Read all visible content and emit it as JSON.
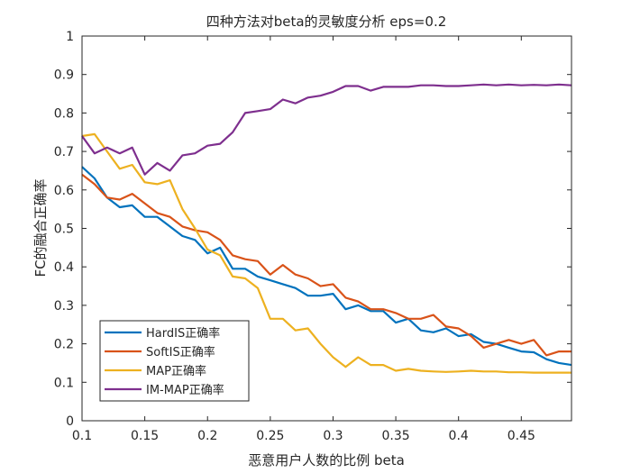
{
  "chart_data": {
    "type": "line",
    "title": "四种方法对beta的灵敏度分析 eps=0.2",
    "xlabel": "恶意用户人数的比例 beta",
    "ylabel": "FC的融合正确率",
    "xlim": [
      0.1,
      0.49
    ],
    "ylim": [
      0,
      1
    ],
    "xticks": [
      0.1,
      0.15,
      0.2,
      0.25,
      0.3,
      0.35,
      0.4,
      0.45
    ],
    "xtick_labels": [
      "0.1",
      "0.15",
      "0.2",
      "0.25",
      "0.3",
      "0.35",
      "0.4",
      "0.45"
    ],
    "yticks": [
      0,
      0.1,
      0.2,
      0.3,
      0.4,
      0.5,
      0.6,
      0.7,
      0.8,
      0.9,
      1
    ],
    "ytick_labels": [
      "0",
      "0.1",
      "0.2",
      "0.3",
      "0.4",
      "0.5",
      "0.6",
      "0.7",
      "0.8",
      "0.9",
      "1"
    ],
    "grid": false,
    "legend_position": "bottom-left",
    "x": [
      0.1,
      0.11,
      0.12,
      0.13,
      0.14,
      0.15,
      0.16,
      0.17,
      0.18,
      0.19,
      0.2,
      0.21,
      0.22,
      0.23,
      0.24,
      0.25,
      0.26,
      0.27,
      0.28,
      0.29,
      0.3,
      0.31,
      0.32,
      0.33,
      0.34,
      0.35,
      0.36,
      0.37,
      0.38,
      0.39,
      0.4,
      0.41,
      0.42,
      0.43,
      0.44,
      0.45,
      0.46,
      0.47,
      0.48,
      0.49
    ],
    "series": [
      {
        "name": "HardIS正确率",
        "color": "#0072BD",
        "values": [
          0.66,
          0.63,
          0.58,
          0.555,
          0.56,
          0.53,
          0.53,
          0.505,
          0.48,
          0.47,
          0.435,
          0.45,
          0.395,
          0.395,
          0.375,
          0.365,
          0.355,
          0.345,
          0.325,
          0.325,
          0.33,
          0.29,
          0.3,
          0.285,
          0.285,
          0.255,
          0.265,
          0.235,
          0.23,
          0.24,
          0.22,
          0.225,
          0.205,
          0.2,
          0.19,
          0.18,
          0.178,
          0.16,
          0.15,
          0.145
        ]
      },
      {
        "name": "SoftIS正确率",
        "color": "#D95319",
        "values": [
          0.64,
          0.615,
          0.58,
          0.575,
          0.59,
          0.565,
          0.54,
          0.53,
          0.505,
          0.495,
          0.49,
          0.47,
          0.43,
          0.42,
          0.415,
          0.38,
          0.405,
          0.38,
          0.37,
          0.35,
          0.355,
          0.32,
          0.31,
          0.29,
          0.29,
          0.28,
          0.265,
          0.265,
          0.275,
          0.245,
          0.24,
          0.22,
          0.19,
          0.2,
          0.21,
          0.2,
          0.21,
          0.17,
          0.18,
          0.18
        ]
      },
      {
        "name": "MAP正确率",
        "color": "#EDB120",
        "values": [
          0.74,
          0.745,
          0.7,
          0.655,
          0.665,
          0.62,
          0.615,
          0.625,
          0.55,
          0.5,
          0.445,
          0.43,
          0.375,
          0.37,
          0.345,
          0.265,
          0.265,
          0.235,
          0.24,
          0.2,
          0.165,
          0.14,
          0.165,
          0.145,
          0.145,
          0.13,
          0.135,
          0.13,
          0.128,
          0.127,
          0.128,
          0.13,
          0.128,
          0.128,
          0.126,
          0.126,
          0.125,
          0.125,
          0.125,
          0.125
        ]
      },
      {
        "name": "IM-MAP正确率",
        "color": "#7E2F8E",
        "values": [
          0.74,
          0.695,
          0.71,
          0.695,
          0.71,
          0.64,
          0.67,
          0.65,
          0.69,
          0.695,
          0.715,
          0.72,
          0.75,
          0.8,
          0.805,
          0.81,
          0.835,
          0.825,
          0.84,
          0.845,
          0.855,
          0.87,
          0.87,
          0.858,
          0.868,
          0.868,
          0.868,
          0.872,
          0.872,
          0.87,
          0.87,
          0.872,
          0.874,
          0.872,
          0.874,
          0.872,
          0.873,
          0.872,
          0.874,
          0.872
        ]
      }
    ]
  }
}
